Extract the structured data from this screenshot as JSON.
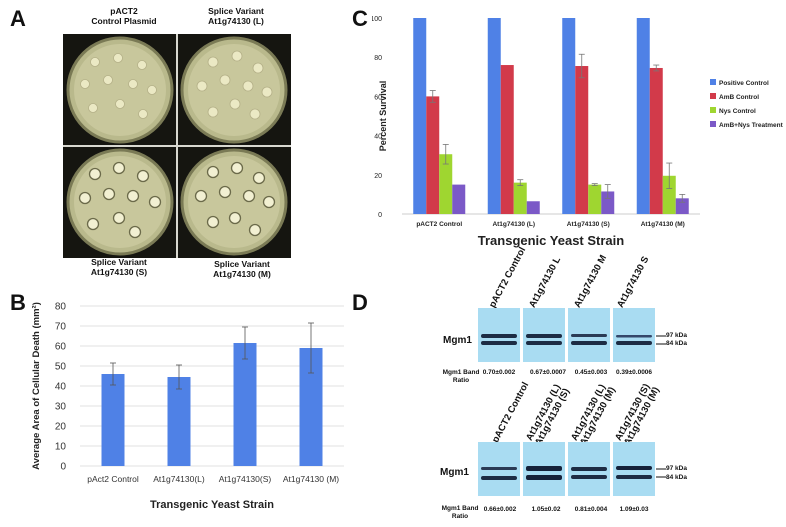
{
  "panels": {
    "a": {
      "letter": "A",
      "plates": [
        {
          "caption": "pACT2\nControl Plasmid"
        },
        {
          "caption": "Splice Variant\nAt1g74130 (L)"
        },
        {
          "caption": "Splice Variant\nAt1g74130 (S)"
        },
        {
          "caption": "Splice Variant\nAt1g74130 (M)"
        }
      ]
    },
    "b": {
      "letter": "B"
    },
    "c": {
      "letter": "C"
    },
    "d": {
      "letter": "D",
      "blot_label": "Mgm1",
      "ratio_label": "Mgm1 Band\nRatio",
      "kda_97": "97 kDa",
      "kda_84": "84 kDa",
      "top": {
        "lanes": [
          "pACT2 Control",
          "At1g74130 L",
          "At1g74130 M",
          "At1g74130 S"
        ],
        "ratios": [
          "0.70±0.002",
          "0.67±0.0007",
          "0.45±0.003",
          "0.39±0.0006"
        ]
      },
      "bottom": {
        "lanes": [
          "pACT2 Control",
          "At1g74130 (L)\nAt1g74130 (S)",
          "At1g74130 (L)\nAt1g74130 (M)",
          "At1g74130 (S)\nAt1g74130 (M)"
        ],
        "ratios": [
          "0.66±0.002",
          "1.05±0.02",
          "0.81±0.004",
          "1.09±0.03"
        ]
      }
    }
  },
  "chart_data": [
    {
      "type": "bar",
      "panel": "B",
      "categories": [
        "pAct2 Control",
        "At1g74130(L)",
        "At1g74130(S)",
        "At1g74130 (M)"
      ],
      "values": [
        46,
        44.5,
        61.5,
        59
      ],
      "errors": [
        5.5,
        6,
        8,
        12.5
      ],
      "xlabel": "Transgenic Yeast Strain",
      "ylabel": "Average Area of Cellular Death (mm²)",
      "ylim": [
        0,
        80
      ],
      "yticks": [
        0,
        10,
        20,
        30,
        40,
        50,
        60,
        70,
        80
      ],
      "grid": true,
      "color": "#4f81e6"
    },
    {
      "type": "bar",
      "panel": "C",
      "categories": [
        "pACT2 Control",
        "At1g74130 (L)",
        "At1g74130 (S)",
        "At1g74130 (M)"
      ],
      "series": [
        {
          "name": "Positive Control",
          "color": "#4f81e6",
          "values": [
            100,
            100,
            100,
            100
          ],
          "errors": [
            0,
            0,
            0,
            0
          ]
        },
        {
          "name": "AmB Control",
          "color": "#d23a4a",
          "values": [
            60,
            76,
            75.5,
            74.5
          ],
          "errors": [
            3,
            0,
            6,
            1.5
          ]
        },
        {
          "name": "Nys Control",
          "color": "#9fd630",
          "values": [
            30.5,
            16,
            15,
            19.5
          ],
          "errors": [
            5,
            1.5,
            0.5,
            6.5
          ]
        },
        {
          "name": "AmB+Nys Treatment",
          "color": "#7b59c7",
          "values": [
            15,
            6.5,
            11.5,
            8
          ],
          "errors": [
            0,
            0,
            3.5,
            2
          ]
        }
      ],
      "xlabel": "Transgenic Yeast Strain",
      "ylabel": "Percent Survival",
      "ylim": [
        0,
        100
      ],
      "yticks": [
        0,
        20,
        40,
        60,
        80,
        100
      ],
      "grid": false,
      "legend": "right"
    }
  ]
}
